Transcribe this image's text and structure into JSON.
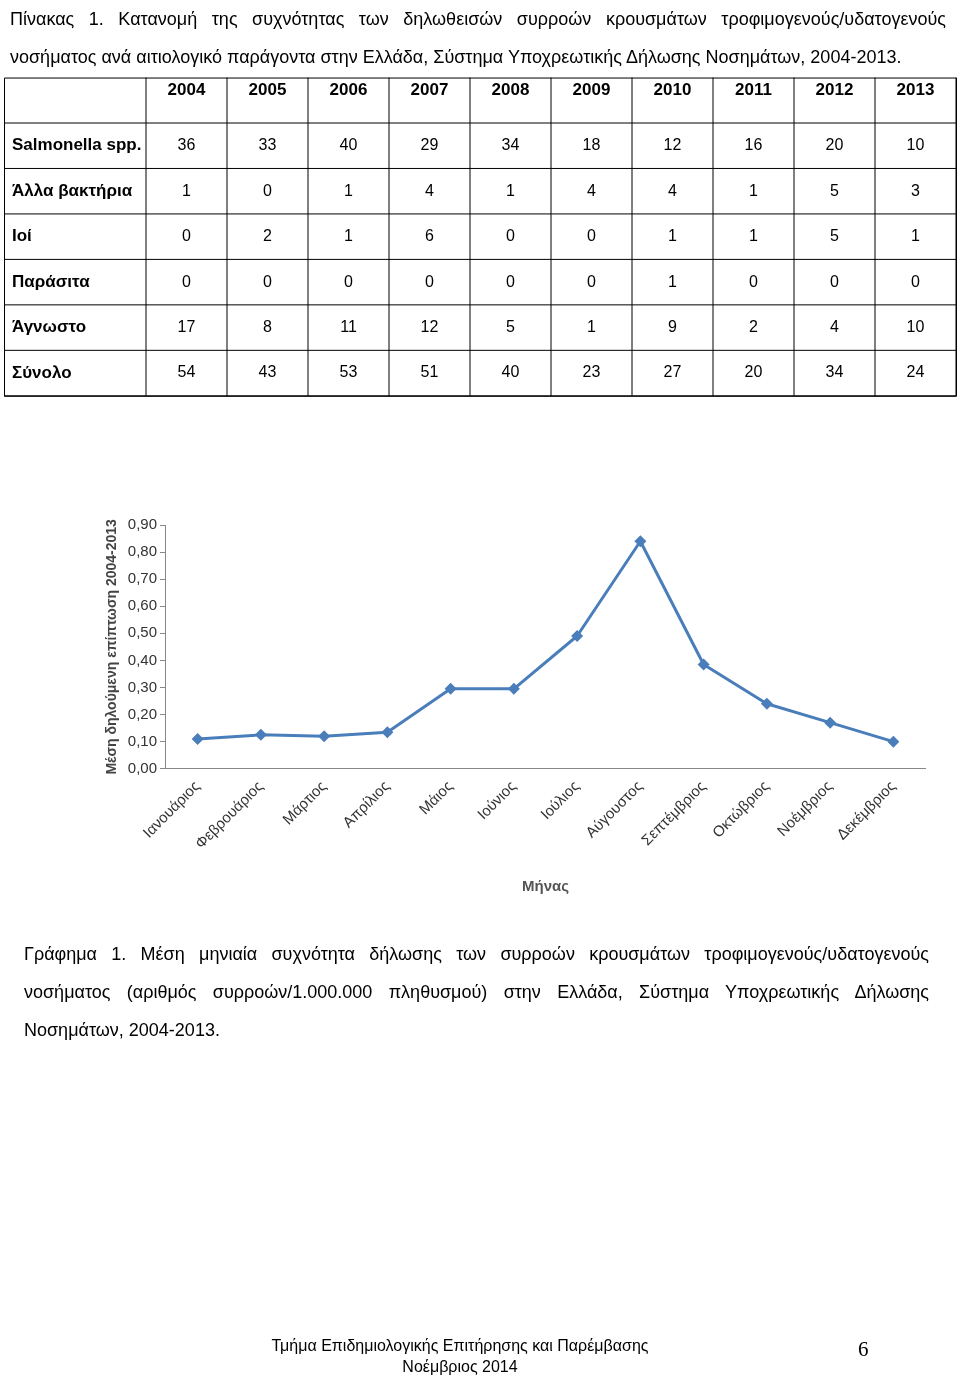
{
  "chart_data": [
    {
      "type": "heatmap",
      "title": "Πίνακας 1. Κατανομή της συχνότητας των δηλωθεισών συρροών κρουσμάτων τροφιμογενούς/υδατογενούς νοσήματος ανά αιτιολογικό παράγοντα στην Ελλάδα, Σύστημα Υποχρεωτικής Δήλωσης Νοσημάτων, 2004-2013.",
      "categories": [
        "2004",
        "2005",
        "2006",
        "2007",
        "2008",
        "2009",
        "2010",
        "2011",
        "2012",
        "2013"
      ],
      "y_categories": [
        "Salmonella spp.",
        "Άλλα βακτήρια",
        "Ιοί",
        "Παράσιτα",
        "Άγνωστο",
        "Σύνολο"
      ],
      "cells": [
        [
          36,
          33,
          40,
          29,
          34,
          18,
          12,
          16,
          20,
          10
        ],
        [
          1,
          0,
          1,
          4,
          1,
          4,
          4,
          1,
          5,
          3
        ],
        [
          0,
          2,
          1,
          6,
          0,
          0,
          1,
          1,
          5,
          1
        ],
        [
          0,
          0,
          0,
          0,
          0,
          0,
          1,
          0,
          0,
          0
        ],
        [
          17,
          8,
          11,
          12,
          5,
          1,
          9,
          2,
          4,
          10
        ],
        [
          54,
          43,
          53,
          51,
          40,
          23,
          27,
          20,
          34,
          24
        ]
      ],
      "data_labels": true
    },
    {
      "type": "line",
      "categories": [
        "Ιανουάριος",
        "Φεβρουάριος",
        "Μάρτιος",
        "Απρίλιος",
        "Μάιος",
        "Ιούνιος",
        "Ιούλιος",
        "Αύγουστος",
        "Σεπτέμβριος",
        "Οκτώβριος",
        "Νοέμβριος",
        "Δεκέμβριος"
      ],
      "series": [
        {
          "color": "#4a7ebb",
          "values": [
            0.11,
            0.125,
            0.12,
            0.135,
            0.295,
            0.295,
            0.49,
            0.84,
            0.385,
            0.24,
            0.17,
            0.1
          ]
        }
      ],
      "xlabel": "Μήνας",
      "ylabel": "Μέση δηλούμενη επίπτωση 2004-2013",
      "ylim": [
        0,
        0.9
      ],
      "yticks": [
        {
          "value": 0,
          "label": "0,00"
        },
        {
          "value": 0.1,
          "label": "0,10"
        },
        {
          "value": 0.2,
          "label": "0,20"
        },
        {
          "value": 0.3,
          "label": "0,30"
        },
        {
          "value": 0.4,
          "label": "0,40"
        },
        {
          "value": 0.5,
          "label": "0,50"
        },
        {
          "value": 0.6,
          "label": "0,60"
        },
        {
          "value": 0.7,
          "label": "0,70"
        },
        {
          "value": 0.8,
          "label": "0,80"
        },
        {
          "value": 0.9,
          "label": "0,90"
        }
      ],
      "marker": "diamond",
      "grid": false,
      "legend": false,
      "annotations": [
        "Γράφημα 1. Μέση μηνιαία συχνότητα δήλωσης των συρροών κρουσμάτων τροφιμογενούς/υδατογενούς νοσήματος (αριθμός συρροών/1.000.000 πληθυσμού) στην Ελλάδα, Σύστημα Υποχρεωτικής Δήλωσης Νοσημάτων, 2004-2013.",
        "Τμήμα Επιδημιολογικής Επιτήρησης και Παρέμβασης",
        "Νοέμβριος 2014",
        "6"
      ]
    }
  ]
}
